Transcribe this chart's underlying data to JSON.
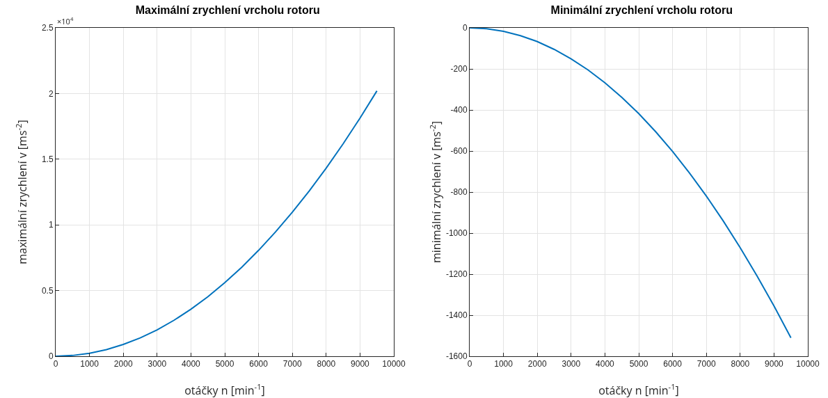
{
  "chart_data": [
    {
      "type": "line",
      "title": "Maximální zrychlení vrcholu rotoru",
      "xlabel": "otáčky n [min$^{-1}$]",
      "ylabel": "maximální zrychlení v [ms$^{-2}$]",
      "annotations": [
        "×10$^{4}$"
      ],
      "x": [
        0,
        500,
        1000,
        1500,
        2000,
        2500,
        3000,
        3500,
        4000,
        4500,
        5000,
        5500,
        6000,
        6500,
        7000,
        7500,
        8000,
        8500,
        9000,
        9500
      ],
      "series": [
        {
          "color": "#0072bd",
          "values": [
            0,
            0.006,
            0.022,
            0.05,
            0.09,
            0.14,
            0.201,
            0.274,
            0.358,
            0.453,
            0.56,
            0.677,
            0.806,
            0.946,
            1.097,
            1.259,
            1.432,
            1.617,
            1.813,
            2.02
          ]
        }
      ],
      "xlim": [
        0,
        10000
      ],
      "xticks": [
        0,
        1000,
        2000,
        3000,
        4000,
        5000,
        6000,
        7000,
        8000,
        9000,
        10000
      ],
      "ylim": [
        0,
        2.5
      ],
      "yticks": [
        0,
        0.5,
        1,
        1.5,
        2,
        2.5
      ],
      "grid": true,
      "legend": false,
      "marker": "none",
      "line_style": "solid"
    },
    {
      "type": "line",
      "title": "Minimální zrychlení vrcholu rotoru",
      "xlabel": "otáčky n [min$^{-1}$]",
      "ylabel": "minimální zrychlení v [ms$^{-2}$]",
      "x": [
        0,
        500,
        1000,
        1500,
        2000,
        2500,
        3000,
        3500,
        4000,
        4500,
        5000,
        5500,
        6000,
        6500,
        7000,
        7500,
        8000,
        8500,
        9000,
        9500
      ],
      "series": [
        {
          "color": "#0072bd",
          "values": [
            0,
            -4,
            -17,
            -38,
            -67,
            -105,
            -151,
            -205,
            -268,
            -339,
            -418,
            -506,
            -602,
            -707,
            -820,
            -941,
            -1071,
            -1209,
            -1355,
            -1510
          ]
        }
      ],
      "xlim": [
        0,
        10000
      ],
      "xticks": [
        0,
        1000,
        2000,
        3000,
        4000,
        5000,
        6000,
        7000,
        8000,
        9000,
        10000
      ],
      "ylim": [
        -1600,
        0
      ],
      "yticks": [
        -1600,
        -1400,
        -1200,
        -1000,
        -800,
        -600,
        -400,
        -200,
        0
      ],
      "grid": true,
      "legend": false,
      "marker": "none",
      "line_style": "solid"
    }
  ]
}
